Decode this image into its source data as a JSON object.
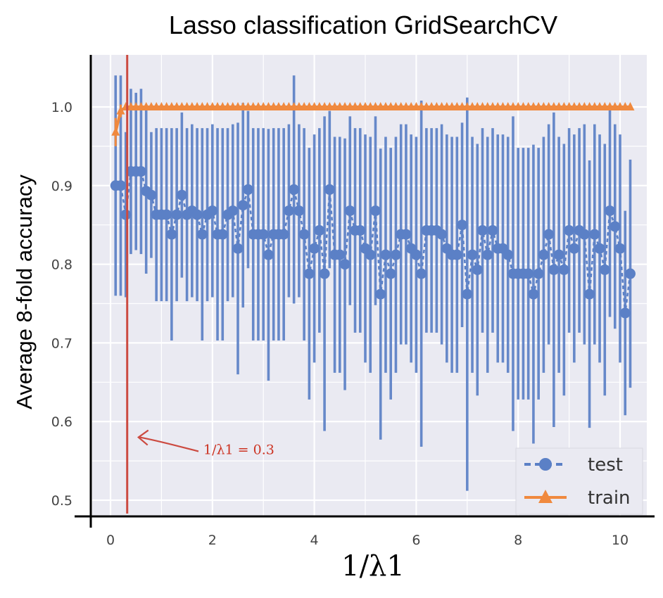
{
  "chart_data": {
    "type": "line",
    "title": "Lasso classification GridSearchCV",
    "xlabel": "1/λ1",
    "ylabel": "Average 8-fold accuracy",
    "xlim": [
      -0.3,
      10.4
    ],
    "ylim": [
      0.48,
      1.07
    ],
    "x_ticks": [
      "0",
      "2",
      "4",
      "6",
      "8",
      "10"
    ],
    "y_ticks": [
      "0.5",
      "0.6",
      "0.7",
      "0.8",
      "0.9",
      "1.0"
    ],
    "grid": true,
    "legend_position": "bottom-right",
    "colors": {
      "test": "#5b80c6",
      "train": "#f0893e",
      "vline": "#cc4a40",
      "plot_bg": "#eaeaf2",
      "grid": "#ffffff"
    },
    "series": [
      {
        "name": "test",
        "marker": "circle",
        "linestyle": "dashed",
        "x_start": 0.1,
        "x_step": 0.1,
        "values": [
          0.9,
          0.9,
          0.863,
          0.918,
          0.918,
          0.918,
          0.893,
          0.888,
          0.863,
          0.863,
          0.863,
          0.838,
          0.863,
          0.888,
          0.863,
          0.868,
          0.863,
          0.838,
          0.863,
          0.868,
          0.838,
          0.838,
          0.863,
          0.868,
          0.82,
          0.875,
          0.895,
          0.838,
          0.838,
          0.838,
          0.812,
          0.838,
          0.838,
          0.838,
          0.868,
          0.895,
          0.868,
          0.838,
          0.788,
          0.82,
          0.843,
          0.788,
          0.895,
          0.812,
          0.812,
          0.8,
          0.868,
          0.843,
          0.843,
          0.82,
          0.812,
          0.868,
          0.762,
          0.812,
          0.788,
          0.812,
          0.838,
          0.838,
          0.82,
          0.812,
          0.788,
          0.843,
          0.843,
          0.843,
          0.838,
          0.82,
          0.812,
          0.812,
          0.85,
          0.762,
          0.812,
          0.793,
          0.843,
          0.812,
          0.843,
          0.82,
          0.82,
          0.812,
          0.788,
          0.788,
          0.788,
          0.788,
          0.762,
          0.788,
          0.812,
          0.838,
          0.793,
          0.812,
          0.793,
          0.843,
          0.82,
          0.843,
          0.838,
          0.762,
          0.838,
          0.82,
          0.793,
          0.868,
          0.848,
          0.82,
          0.738,
          0.788
        ],
        "errors": [
          0.14,
          0.14,
          0.105,
          0.105,
          0.1,
          0.105,
          0.105,
          0.08,
          0.11,
          0.11,
          0.11,
          0.135,
          0.11,
          0.105,
          0.11,
          0.11,
          0.11,
          0.135,
          0.11,
          0.11,
          0.135,
          0.135,
          0.11,
          0.11,
          0.16,
          0.13,
          0.1,
          0.135,
          0.135,
          0.135,
          0.16,
          0.135,
          0.135,
          0.135,
          0.11,
          0.145,
          0.11,
          0.135,
          0.16,
          0.145,
          0.13,
          0.2,
          0.1,
          0.15,
          0.15,
          0.16,
          0.12,
          0.13,
          0.13,
          0.145,
          0.15,
          0.12,
          0.185,
          0.15,
          0.16,
          0.15,
          0.14,
          0.14,
          0.145,
          0.15,
          0.22,
          0.13,
          0.13,
          0.13,
          0.14,
          0.145,
          0.15,
          0.15,
          0.13,
          0.25,
          0.15,
          0.16,
          0.13,
          0.15,
          0.13,
          0.145,
          0.145,
          0.15,
          0.2,
          0.16,
          0.16,
          0.16,
          0.19,
          0.16,
          0.15,
          0.14,
          0.2,
          0.15,
          0.16,
          0.13,
          0.145,
          0.13,
          0.14,
          0.17,
          0.14,
          0.145,
          0.16,
          0.135,
          0.13,
          0.145,
          0.13,
          0.145
        ]
      },
      {
        "name": "train",
        "marker": "triangle",
        "linestyle": "solid",
        "x_start": 0.1,
        "x_step": 0.1,
        "values": [
          0.968,
          0.995,
          1.0
        ],
        "errors": [
          0.018,
          0.008,
          0.002
        ],
        "fill_value": 1.0,
        "fill_error": 0.003,
        "count": 102
      }
    ],
    "annotations": [
      {
        "type": "vline",
        "x": 0.3,
        "label": "1/λ1 = 0.3",
        "label_position": "left-arrow",
        "label_y": 0.58
      }
    ]
  }
}
